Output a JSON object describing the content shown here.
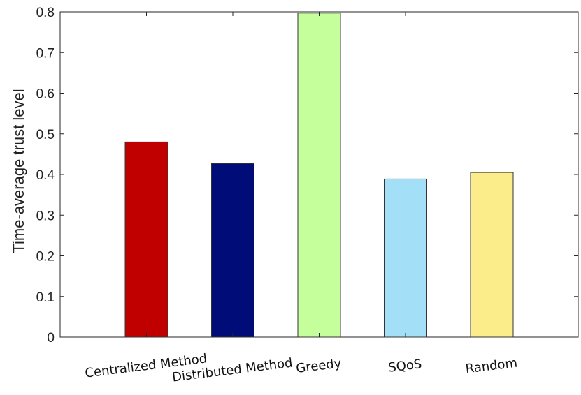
{
  "chart_data": {
    "type": "bar",
    "title": "",
    "xlabel": "",
    "ylabel": "Time-average trust level",
    "categories": [
      "Centralized Method",
      "Distributed Method",
      "Greedy",
      "SQoS",
      "Random"
    ],
    "values": [
      0.48,
      0.427,
      0.797,
      0.389,
      0.405
    ],
    "colors": [
      "#c00000",
      "#000c78",
      "#c4ff9c",
      "#a4dff8",
      "#fbed8a"
    ],
    "ylim": [
      0,
      0.8
    ],
    "yticks": [
      "0",
      "0.1",
      "0.2",
      "0.3",
      "0.4",
      "0.5",
      "0.6",
      "0.7",
      "0.8"
    ],
    "grid": false,
    "legend": "none"
  }
}
